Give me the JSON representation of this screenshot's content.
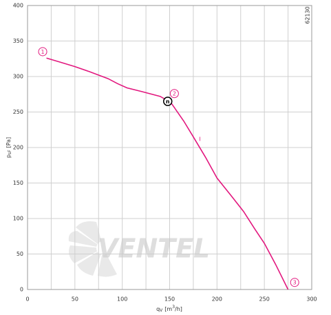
{
  "chart_data": {
    "type": "line",
    "code": "62130",
    "watermark": "VENTEL",
    "ylabel": {
      "main": "p",
      "sub": "sF",
      "unit": "[Pa]"
    },
    "xlabel": {
      "main": "q",
      "sub": "V",
      "unit": "[m",
      "sup": "3",
      "end": "/h]"
    },
    "xlim": [
      0,
      300
    ],
    "ylim": [
      0,
      400
    ],
    "xticks": [
      0,
      50,
      100,
      150,
      200,
      250,
      300
    ],
    "xminor": [
      25,
      75,
      125,
      175,
      225,
      275
    ],
    "yticks": [
      0,
      50,
      100,
      150,
      200,
      250,
      300,
      350,
      400
    ],
    "grid": true,
    "series": [
      {
        "name": "I",
        "color": "#e2177e",
        "x": [
          20,
          35,
          50,
          65,
          85,
          95,
          105,
          120,
          140,
          148,
          152,
          165,
          175,
          188,
          200,
          215,
          228,
          240,
          250,
          262,
          275
        ],
        "values": [
          326,
          320,
          314,
          307,
          297,
          290,
          284,
          279,
          272,
          266,
          262,
          237,
          215,
          186,
          157,
          132,
          110,
          85,
          65,
          35,
          0
        ]
      }
    ],
    "annotations": [
      {
        "label": "1",
        "x": 16,
        "y": 335
      },
      {
        "label": "2",
        "x": 155,
        "y": 276
      },
      {
        "label": "3",
        "x": 282,
        "y": 10
      },
      {
        "label": "n",
        "x": 148,
        "y": 265
      },
      {
        "label": "I",
        "x": 182,
        "y": 212
      }
    ]
  }
}
